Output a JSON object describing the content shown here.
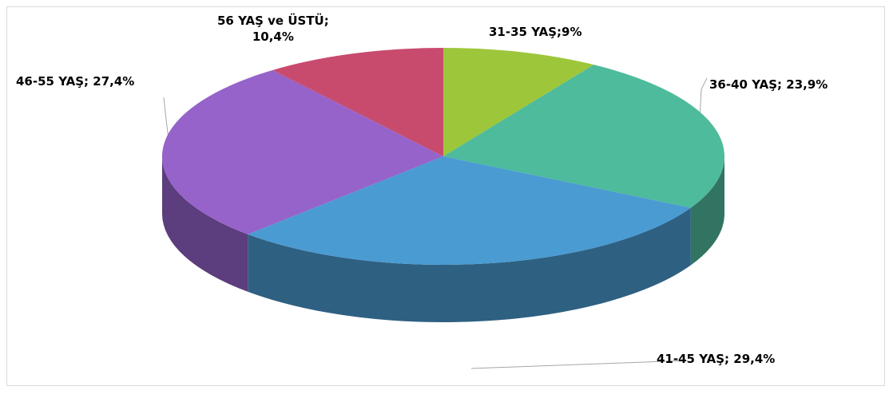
{
  "chart_data": {
    "type": "pie",
    "values": [
      9,
      23.9,
      29.4,
      27.4,
      10.4
    ],
    "value_labels": [
      "31-35 YAŞ;9%",
      "36-40 YAŞ; 23,9%",
      "41-45 YAŞ; 29,4%",
      "46-55 YAŞ; 27,4%",
      "56 YAŞ ve ÜSTÜ;\n10,4%"
    ],
    "colors": [
      "#9dc63b",
      "#4dbb9c",
      "#4a9bd1",
      "#9563c9",
      "#c84b6e"
    ]
  }
}
